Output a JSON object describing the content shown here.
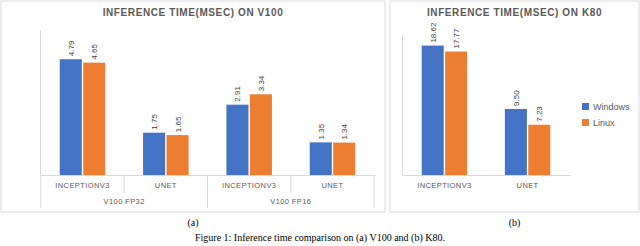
{
  "chart_data": [
    {
      "type": "bar",
      "title": "INFERENCE TIME(MSEC) ON V100",
      "categories": [
        "INCEPTIONV3",
        "UNET",
        "INCEPTIONV3",
        "UNET"
      ],
      "category_groups": [
        "V100 FP32",
        "V100 FP32",
        "V100 FP16",
        "V100 FP16"
      ],
      "series": [
        {
          "name": "Windows",
          "color": "#4472c4",
          "values": [
            4.79,
            1.75,
            2.91,
            1.35
          ]
        },
        {
          "name": "Linux",
          "color": "#ed7d31",
          "values": [
            4.65,
            1.65,
            3.34,
            1.34
          ]
        }
      ],
      "ylim": [
        0,
        6
      ],
      "yticks": [],
      "data_labels": true,
      "tick_labels": "x",
      "annotations": [
        "(a)"
      ]
    },
    {
      "type": "bar",
      "title": "INFERENCE TIME(MSEC) ON K80",
      "categories": [
        "INCEPTIONV3",
        "UNET"
      ],
      "series": [
        {
          "name": "Windows",
          "color": "#4472c4",
          "values": [
            18.62,
            9.5
          ],
          "value_labels": [
            "18.62",
            "9.50"
          ]
        },
        {
          "name": "Linux",
          "color": "#ed7d31",
          "values": [
            17.77,
            7.23
          ]
        }
      ],
      "ylim": [
        0,
        20
      ],
      "yticks": [],
      "data_labels": true,
      "tick_labels": "x",
      "legend": "right",
      "annotations": [
        "(b)"
      ]
    }
  ],
  "caption": "Figure 1: Inference time comparison on (a) V100 and (b) K80."
}
